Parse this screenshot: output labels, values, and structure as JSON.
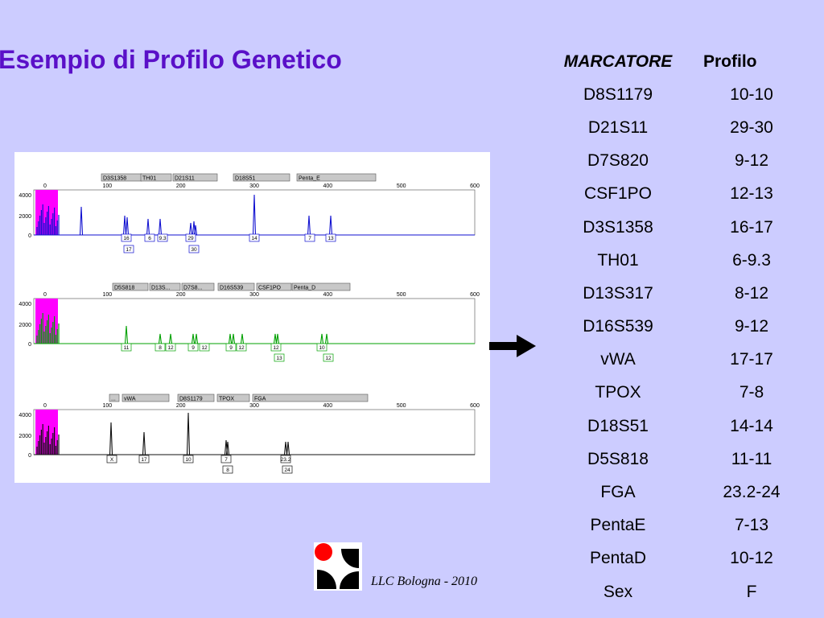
{
  "slide": {
    "title": "Esempio di Profilo Genetico",
    "credit": "LLC Bologna - 2010"
  },
  "colors": {
    "background": "#ccccff",
    "title": "#5a10c8",
    "blue_trace": "#1010d0",
    "green_trace": "#00a000",
    "black_trace": "#101010",
    "magenta_band": "#ff00ff",
    "marker_box": "#c8c8c8",
    "logo_red": "#ff0000"
  },
  "table": {
    "header_marker": "MARCATORE",
    "header_profile": "Profilo",
    "rows": [
      {
        "marker": "D8S1179",
        "profile": "10-10"
      },
      {
        "marker": "D21S11",
        "profile": "29-30"
      },
      {
        "marker": "D7S820",
        "profile": "9-12"
      },
      {
        "marker": "CSF1PO",
        "profile": "12-13"
      },
      {
        "marker": "D3S1358",
        "profile": "16-17"
      },
      {
        "marker": "TH01",
        "profile": "6-9.3"
      },
      {
        "marker": "D13S317",
        "profile": "8-12"
      },
      {
        "marker": "D16S539",
        "profile": "9-12"
      },
      {
        "marker": "vWA",
        "profile": "17-17"
      },
      {
        "marker": "TPOX",
        "profile": "7-8"
      },
      {
        "marker": "D18S51",
        "profile": "14-14"
      },
      {
        "marker": "D5S818",
        "profile": "11-11"
      },
      {
        "marker": "FGA",
        "profile": "23.2-24"
      },
      {
        "marker": "PentaE",
        "profile": "7-13"
      },
      {
        "marker": "PentaD",
        "profile": "10-12"
      },
      {
        "marker": "Sex",
        "profile": "F"
      }
    ]
  },
  "electropherogram": {
    "x_ticks": [
      "0",
      "100",
      "200",
      "300",
      "400",
      "500",
      "600"
    ],
    "panels": [
      {
        "color_key": "blue_trace",
        "y_ticks": [
          "4000",
          "2000",
          "0"
        ],
        "markers": [
          "D3S1358",
          "TH01",
          "D21S11",
          "D18S51",
          "Penta_E"
        ],
        "allele_labels_top": [
          "16",
          "6",
          "9.3",
          "29",
          "14",
          "7",
          "13"
        ],
        "allele_labels_bottom": [
          "17",
          "30"
        ]
      },
      {
        "color_key": "green_trace",
        "y_ticks": [
          "4000",
          "2000",
          "0"
        ],
        "markers": [
          "D5S818",
          "D13S...",
          "D7S8...",
          "D16S539",
          "CSF1PO",
          "Penta_D"
        ],
        "allele_labels_top": [
          "11",
          "8",
          "12",
          "9",
          "12",
          "9",
          "12",
          "12",
          "10"
        ],
        "allele_labels_bottom": [
          "13",
          "12"
        ]
      },
      {
        "color_key": "black_trace",
        "y_ticks": [
          "4000",
          "2000",
          "0"
        ],
        "markers": [
          "...",
          "vWA",
          "D8S1179",
          "TPOX",
          "FGA"
        ],
        "allele_labels_top": [
          "X",
          "17",
          "10",
          "7",
          "23.2"
        ],
        "allele_labels_bottom": [
          "8",
          "24"
        ]
      }
    ]
  }
}
